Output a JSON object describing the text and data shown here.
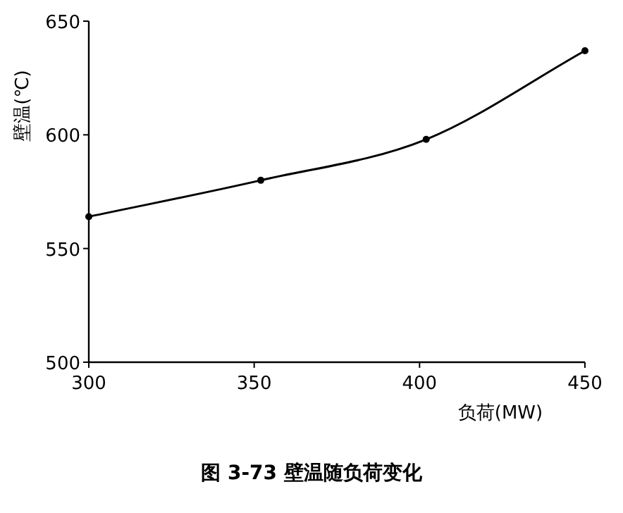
{
  "chart_data": {
    "type": "line",
    "title": "图 3-73  壁温随负荷变化",
    "xlabel": "负荷(MW)",
    "ylabel": "壁温(℃)",
    "x": [
      300,
      352,
      402,
      450
    ],
    "series": [
      {
        "color": "#000000",
        "values": [
          564,
          580,
          598,
          637
        ]
      }
    ],
    "xlim": [
      300,
      450
    ],
    "ylim": [
      500,
      650
    ],
    "xticks": [
      300,
      350,
      400,
      450
    ],
    "yticks": [
      500,
      550,
      600,
      650
    ],
    "marker": "circle",
    "line_style": "solid"
  }
}
